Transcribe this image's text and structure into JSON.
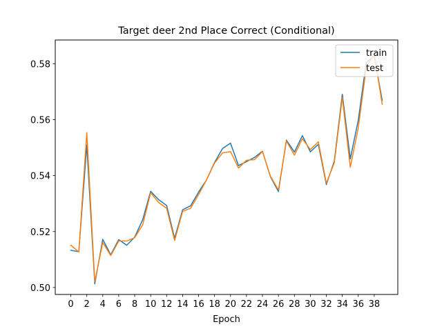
{
  "chart_data": {
    "type": "line",
    "title": "Target deer 2nd Place Correct (Conditional)",
    "xlabel": "Epoch",
    "ylabel": "",
    "xlim": [
      -1.95,
      40.95
    ],
    "ylim": [
      0.4975,
      0.5885
    ],
    "xticks": [
      0,
      2,
      4,
      6,
      8,
      10,
      12,
      14,
      16,
      18,
      20,
      22,
      24,
      26,
      28,
      30,
      32,
      34,
      36,
      38
    ],
    "yticks": [
      0.5,
      0.52,
      0.54,
      0.56,
      0.58
    ],
    "ytick_labels": [
      "0.50",
      "0.52",
      "0.54",
      "0.56",
      "0.58"
    ],
    "legend_position": "top-right",
    "grid": false,
    "x": [
      0,
      1,
      2,
      3,
      4,
      5,
      6,
      7,
      8,
      9,
      10,
      11,
      12,
      13,
      14,
      15,
      16,
      17,
      18,
      19,
      20,
      21,
      22,
      23,
      24,
      25,
      26,
      27,
      28,
      29,
      30,
      31,
      32,
      33,
      34,
      35,
      36,
      37,
      38,
      39
    ],
    "series": [
      {
        "name": "train",
        "color": "#1f77b4",
        "values": [
          0.5133,
          0.5128,
          0.551,
          0.5013,
          0.5172,
          0.5117,
          0.5171,
          0.5151,
          0.518,
          0.5242,
          0.5344,
          0.5314,
          0.5293,
          0.5176,
          0.5278,
          0.5292,
          0.5341,
          0.5385,
          0.5447,
          0.5497,
          0.5516,
          0.5436,
          0.545,
          0.5465,
          0.5487,
          0.5396,
          0.5343,
          0.5527,
          0.5484,
          0.5543,
          0.5485,
          0.5512,
          0.5368,
          0.5452,
          0.5691,
          0.546,
          0.5598,
          0.5805,
          0.5827,
          0.5669
        ]
      },
      {
        "name": "test",
        "color": "#ff7f0e",
        "values": [
          0.5151,
          0.5127,
          0.5554,
          0.5021,
          0.5161,
          0.5114,
          0.5166,
          0.5166,
          0.5178,
          0.5224,
          0.5339,
          0.5304,
          0.5283,
          0.5168,
          0.5272,
          0.5283,
          0.5332,
          0.5385,
          0.5445,
          0.5481,
          0.5486,
          0.5427,
          0.5455,
          0.5457,
          0.5486,
          0.5398,
          0.5349,
          0.5524,
          0.5473,
          0.5532,
          0.5493,
          0.5521,
          0.5373,
          0.5446,
          0.5679,
          0.543,
          0.5571,
          0.5787,
          0.5835,
          0.5655
        ]
      }
    ]
  }
}
